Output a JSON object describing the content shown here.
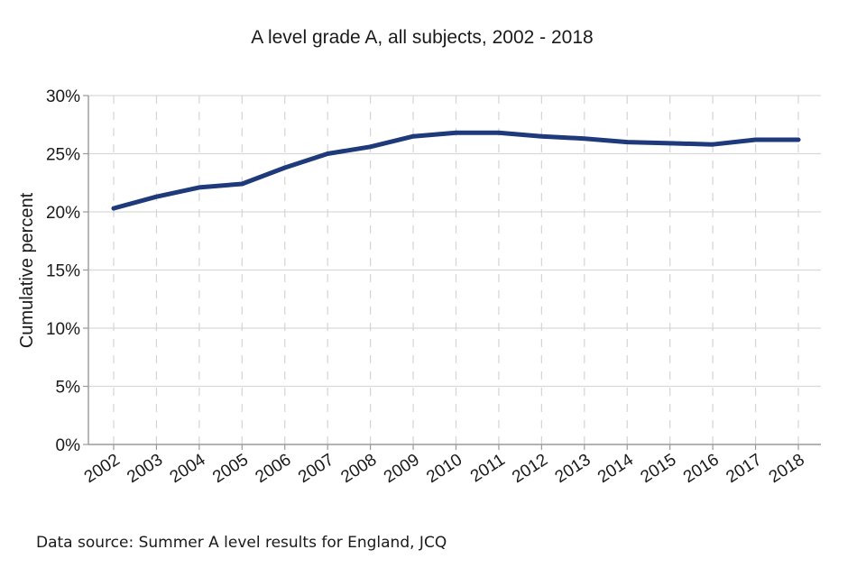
{
  "chart_data": {
    "type": "line",
    "title": "A level grade A, all subjects, 2002 - 2018",
    "xlabel": "",
    "ylabel": "Cumulative percent",
    "x": [
      "2002",
      "2003",
      "2004",
      "2005",
      "2006",
      "2007",
      "2008",
      "2009",
      "2010",
      "2011",
      "2012",
      "2013",
      "2014",
      "2015",
      "2016",
      "2017",
      "2018"
    ],
    "series": [
      {
        "values": [
          20.3,
          21.3,
          22.1,
          22.4,
          23.8,
          25.0,
          25.6,
          26.5,
          26.8,
          26.8,
          26.5,
          26.3,
          26.0,
          25.9,
          25.8,
          26.2,
          26.2
        ]
      }
    ],
    "ylim": [
      0,
      30
    ],
    "yticks": [
      0,
      5,
      10,
      15,
      20,
      25,
      30
    ],
    "ytick_labels": [
      "0%",
      "5%",
      "10%",
      "15%",
      "20%",
      "25%",
      "30%"
    ],
    "grid": {
      "horizontal": true,
      "vertical_dashed": true
    },
    "line_color": "#1f3a7a",
    "legend": "none"
  },
  "source_note": "Data source: Summer A level results for England, JCQ"
}
